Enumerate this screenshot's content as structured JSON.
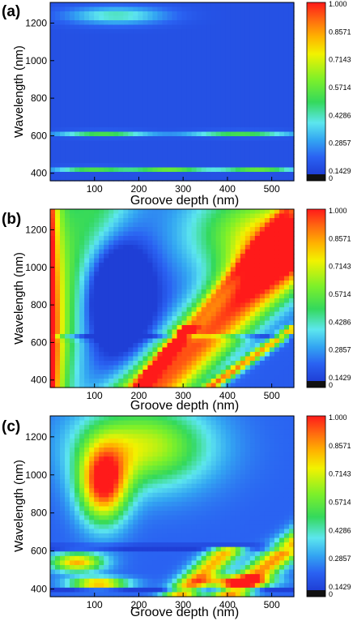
{
  "chart_data": [
    {
      "type": "heatmap",
      "panel_label": "(a)",
      "xlabel": "Groove depth (nm)",
      "ylabel": "Wavelength (nm)",
      "xlim": [
        0,
        550
      ],
      "ylim": [
        360,
        1310
      ],
      "x_ticks": [
        100,
        200,
        300,
        400,
        500
      ],
      "y_ticks": [
        400,
        600,
        800,
        1000,
        1200
      ],
      "colorbar": {
        "range": [
          0,
          1
        ],
        "tick_labels": [
          "1.000",
          "0.8571",
          "0.7143",
          "0.5714",
          "0.4286",
          "0.2857",
          "0.1429",
          "0"
        ]
      },
      "features": [
        {
          "x": 150,
          "y": 1240,
          "x_width": 110,
          "y_width": 45,
          "value": 0.3
        },
        {
          "x": 120,
          "y": 610,
          "x_width": 105,
          "y_width": 14,
          "value": 0.4
        },
        {
          "x": 430,
          "y": 610,
          "x_width": 120,
          "y_width": 14,
          "value": 0.4
        },
        {
          "x": 95,
          "y": 425,
          "x_width": 90,
          "y_width": 10,
          "value": 0.55
        },
        {
          "x": 270,
          "y": 420,
          "x_width": 90,
          "y_width": 10,
          "value": 0.45
        },
        {
          "x": 470,
          "y": 420,
          "x_width": 90,
          "y_width": 10,
          "value": 0.45
        }
      ]
    },
    {
      "type": "heatmap",
      "panel_label": "(b)",
      "xlabel": "Groove depth (nm)",
      "ylabel": "Wavelength (nm)",
      "xlim": [
        0,
        550
      ],
      "ylim": [
        360,
        1310
      ],
      "x_ticks": [
        100,
        200,
        300,
        400,
        500
      ],
      "y_ticks": [
        400,
        600,
        800,
        1000,
        1200
      ],
      "colorbar": {
        "range": [
          0,
          1
        ],
        "tick_labels": [
          "1.000",
          "0.8571",
          "0.7143",
          "0.5714",
          "0.4286",
          "0.2857",
          "0.1429",
          "0"
        ]
      },
      "background_value": 0.05
    },
    {
      "type": "heatmap",
      "panel_label": "(c)",
      "xlabel": "Groove depth (nm)",
      "ylabel": "Wavelength (nm)",
      "xlim": [
        0,
        550
      ],
      "ylim": [
        360,
        1310
      ],
      "x_ticks": [
        100,
        200,
        300,
        400,
        500
      ],
      "y_ticks": [
        400,
        600,
        800,
        1000,
        1200
      ],
      "colorbar": {
        "range": [
          0,
          1
        ],
        "tick_labels": [
          "1.000",
          "0.8571",
          "0.7143",
          "0.5714",
          "0.4286",
          "0.2857",
          "0.1429",
          "0"
        ]
      },
      "background_value": 0.05
    }
  ]
}
